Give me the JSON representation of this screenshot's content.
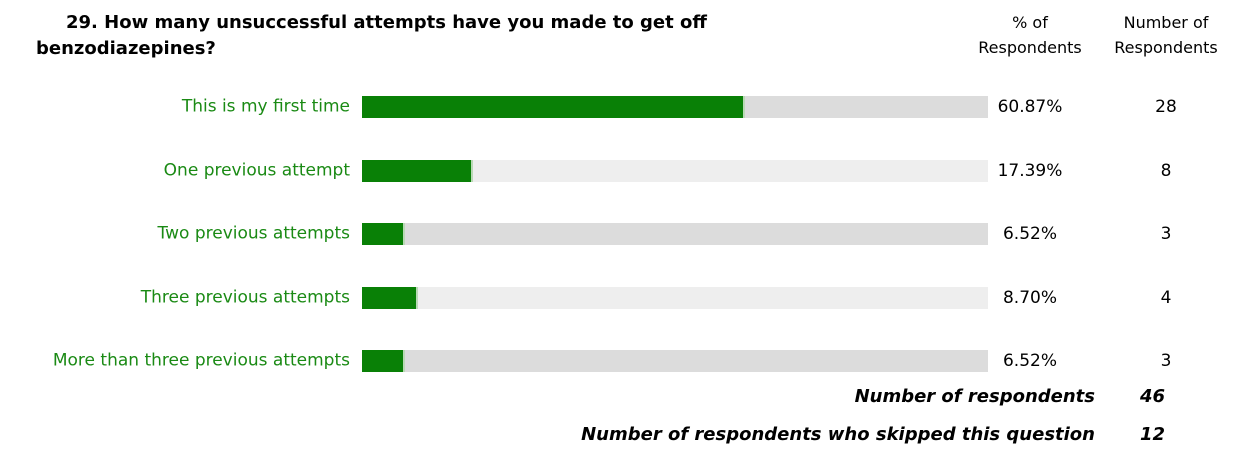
{
  "question": {
    "title": "29. How many  unsuccessful attempts have you made to get off benzodiazepines?"
  },
  "columns": {
    "pct_header": "% of Respondents",
    "num_header": "Number of Respondents"
  },
  "colors": {
    "bar_fill": "#098006",
    "track_odd": "#dcdcdc",
    "track_even": "#eeeeee",
    "label_text": "#1a8a14"
  },
  "chart_data": {
    "type": "bar",
    "orientation": "horizontal",
    "categories": [
      "This is my first time",
      "One previous attempt",
      "Two previous attempts",
      "Three previous attempts",
      "More than three previous attempts"
    ],
    "values": [
      60.87,
      17.39,
      6.52,
      8.7,
      6.52
    ],
    "counts": [
      28,
      8,
      3,
      4,
      3
    ],
    "xlim": [
      0,
      100
    ]
  },
  "rows": [
    {
      "label": "This is my first time",
      "pct_text": "60.87%",
      "count_text": "28"
    },
    {
      "label": "One previous attempt",
      "pct_text": "17.39%",
      "count_text": "8"
    },
    {
      "label": "Two previous attempts",
      "pct_text": "6.52%",
      "count_text": "3"
    },
    {
      "label": "Three previous attempts",
      "pct_text": "8.70%",
      "count_text": "4"
    },
    {
      "label": "More than three previous attempts",
      "pct_text": "6.52%",
      "count_text": "3"
    }
  ],
  "summary": {
    "respondents_label": "Number of respondents",
    "respondents_value": "46",
    "skipped_label": "Number of respondents who skipped this question",
    "skipped_value": "12"
  }
}
